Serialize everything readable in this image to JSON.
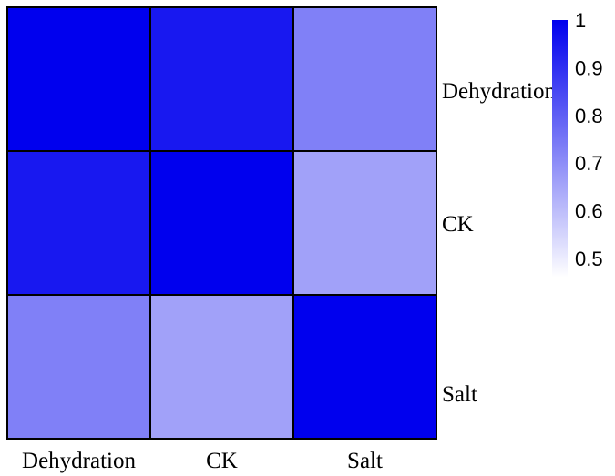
{
  "chart_data": {
    "type": "heatmap",
    "title": "",
    "xlabel": "",
    "ylabel": "",
    "rows": [
      "Dehydration",
      "CK",
      "Salt"
    ],
    "columns": [
      "Dehydration",
      "CK",
      "Salt"
    ],
    "values": [
      [
        1.0,
        0.95,
        0.73
      ],
      [
        0.95,
        1.0,
        0.66
      ],
      [
        0.73,
        0.66,
        1.0
      ]
    ],
    "colorbar": {
      "min": 0.46,
      "max": 1.0,
      "ticks": [
        {
          "value": 1,
          "label": "1"
        },
        {
          "value": 0.9,
          "label": "0.9"
        },
        {
          "value": 0.8,
          "label": "0.8"
        },
        {
          "value": 0.7,
          "label": "0.7"
        },
        {
          "value": 0.6,
          "label": "0.6"
        },
        {
          "value": 0.5,
          "label": "0.5"
        }
      ],
      "low_color": "#ffffff",
      "high_color": "#0000ee",
      "placement": "right"
    },
    "grid_color": "#000000"
  }
}
